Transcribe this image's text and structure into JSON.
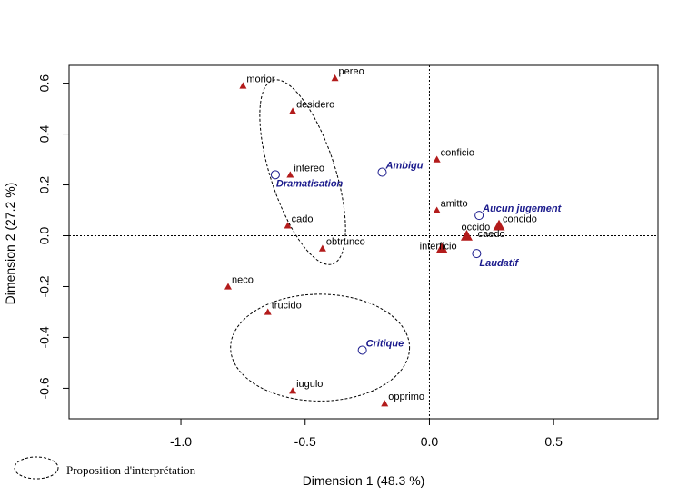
{
  "chart_data": {
    "type": "scatter",
    "title": "",
    "xlabel": "Dimension 1 (48.3 %)",
    "ylabel": "Dimension 2 (27.2 %)",
    "xlim": [
      -1.45,
      0.92
    ],
    "ylim": [
      -0.72,
      0.67
    ],
    "xticks": [
      -1.0,
      -0.5,
      0.0,
      0.5
    ],
    "xtick_labels": [
      "-1.0",
      "-0.5",
      "0.0",
      "0.5"
    ],
    "yticks": [
      -0.6,
      -0.4,
      -0.2,
      0.0,
      0.2,
      0.4,
      0.6
    ],
    "ytick_labels": [
      "-0.6",
      "-0.4",
      "-0.2",
      "0.0",
      "0.2",
      "0.4",
      "0.6"
    ],
    "grid": false,
    "reference_lines": {
      "x": 0,
      "y": 0,
      "style": "dotted"
    },
    "points_color": "#b31b1b",
    "categories_color": "#1a1a8c",
    "points": [
      {
        "label": "pereo",
        "x": -0.38,
        "y": 0.62,
        "size": "small"
      },
      {
        "label": "morior",
        "x": -0.75,
        "y": 0.59,
        "size": "small"
      },
      {
        "label": "desidero",
        "x": -0.55,
        "y": 0.49,
        "size": "small"
      },
      {
        "label": "conficio",
        "x": 0.03,
        "y": 0.3,
        "size": "small"
      },
      {
        "label": "intereo",
        "x": -0.56,
        "y": 0.24,
        "size": "small"
      },
      {
        "label": "amitto",
        "x": 0.03,
        "y": 0.1,
        "size": "small"
      },
      {
        "label": "concido",
        "x": 0.28,
        "y": 0.04,
        "size": "large"
      },
      {
        "label": "cado",
        "x": -0.57,
        "y": 0.04,
        "size": "small"
      },
      {
        "label": "occido",
        "x": 0.15,
        "y": 0.0,
        "size": "large"
      },
      {
        "label": "obtrunco",
        "x": -0.43,
        "y": -0.05,
        "size": "small"
      },
      {
        "label": "interficio",
        "x": 0.05,
        "y": -0.05,
        "size": "large"
      },
      {
        "label": "caedo",
        "x": 0.18,
        "y": -0.02,
        "size": "none"
      },
      {
        "label": "neco",
        "x": -0.81,
        "y": -0.2,
        "size": "small"
      },
      {
        "label": "trucido",
        "x": -0.65,
        "y": -0.3,
        "size": "small"
      },
      {
        "label": "iugulo",
        "x": -0.55,
        "y": -0.61,
        "size": "small"
      },
      {
        "label": "opprimo",
        "x": -0.18,
        "y": -0.66,
        "size": "small"
      }
    ],
    "supplementary": [
      {
        "label": "Ambigu",
        "x": -0.19,
        "y": 0.25
      },
      {
        "label": "Dramatisation",
        "x": -0.62,
        "y": 0.24
      },
      {
        "label": "Aucun jugement",
        "x": 0.2,
        "y": 0.08
      },
      {
        "label": "Laudatif",
        "x": 0.19,
        "y": -0.07
      },
      {
        "label": "Critique",
        "x": -0.27,
        "y": -0.45
      }
    ],
    "ellipses": [
      {
        "cx": -0.51,
        "cy": 0.25,
        "rx": 0.13,
        "ry": 0.38,
        "rotation_deg": -18
      },
      {
        "cx": -0.44,
        "cy": -0.44,
        "rx": 0.36,
        "ry": 0.21,
        "rotation_deg": 0
      }
    ],
    "legend": {
      "position": "bottom-left",
      "entries": [
        {
          "label": "Proposition d'interprétation",
          "symbol": "dashed-ellipse"
        }
      ]
    }
  }
}
